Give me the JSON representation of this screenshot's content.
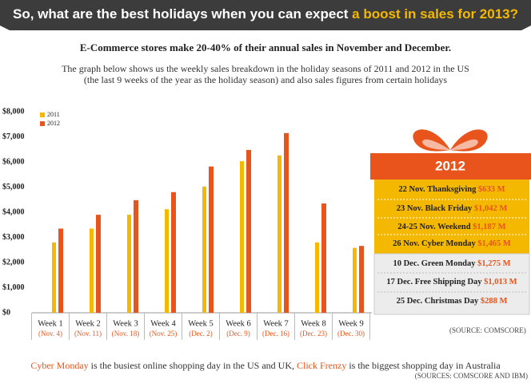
{
  "header": {
    "title_start": "So, what are the best holidays when you can expect ",
    "title_highlight": "a boost in sales for 2013?"
  },
  "intro": {
    "headline": "E-Commerce stores make 20-40% of their annual sales in November and December.",
    "line1": "The graph below shows us the weekly sales breakdown in the holiday seasons of 2011 and 2012 in the US",
    "line2": "(the last 9 weeks of the year as the holiday season) and also sales figures from certain holidays"
  },
  "chart_data": {
    "type": "bar",
    "categories": [
      "Week 1",
      "Week 2",
      "Week 3",
      "Week 4",
      "Week 5",
      "Week 6",
      "Week 7",
      "Week 8",
      "Week 9"
    ],
    "category_dates": [
      "(Nov. 4)",
      "(Nov. 11)",
      "(Nov. 18)",
      "(Nov. 25)",
      "(Dec. 2)",
      "(Dec. 9)",
      "(Dec. 16)",
      "(Dec. 23)",
      "(Dec. 30)"
    ],
    "series": [
      {
        "name": "2011",
        "color": "#f5b800",
        "values": [
          2800,
          3350,
          3900,
          4120,
          5020,
          6030,
          6260,
          2800,
          2580
        ]
      },
      {
        "name": "2012",
        "color": "#e8541c",
        "values": [
          3350,
          3900,
          4480,
          4800,
          5820,
          6480,
          7150,
          4350,
          2660
        ]
      }
    ],
    "ylim": [
      0,
      8000
    ],
    "yticks": [
      {
        "value": 0,
        "label": "$0"
      },
      {
        "value": 1000,
        "label": "$1,000"
      },
      {
        "value": 2000,
        "label": "$2,000"
      },
      {
        "value": 3000,
        "label": "$3,000"
      },
      {
        "value": 4000,
        "label": "$4,000"
      },
      {
        "value": 5000,
        "label": "$5,000"
      },
      {
        "value": 6000,
        "label": "$6,000"
      },
      {
        "value": 7000,
        "label": "$7,000"
      },
      {
        "value": 8000,
        "label": "$8,000"
      }
    ],
    "grid": false,
    "legend": "top-left",
    "source": "(SOURCE: COMSCORE)"
  },
  "panel": {
    "year": "2012",
    "november": [
      {
        "label": "22 Nov. Thanksgiving",
        "amount": "$633 M"
      },
      {
        "label": "23 Nov. Black Friday",
        "amount": "$1,042 M"
      },
      {
        "label": "24-25 Nov. Weekend",
        "amount": "$1,187 M"
      },
      {
        "label": "26 Nov. Cyber Monday",
        "amount": "$1,465 M"
      }
    ],
    "december": [
      {
        "label": "10 Dec. Green Monday",
        "amount": "$1,275 M"
      },
      {
        "label": "17 Dec. Free Shipping Day",
        "amount": "$1,013 M"
      },
      {
        "label": "25 Dec. Christmas Day",
        "amount": "$288 M"
      }
    ]
  },
  "footer": {
    "part1": "Cyber Monday",
    "part2": " is the busiest online shopping day in the US and UK, ",
    "part3": "Click Frenzy",
    "part4": " is the biggest shopping day in Australia",
    "source": "(SOURCES: COMSCORE AND IBM)"
  }
}
